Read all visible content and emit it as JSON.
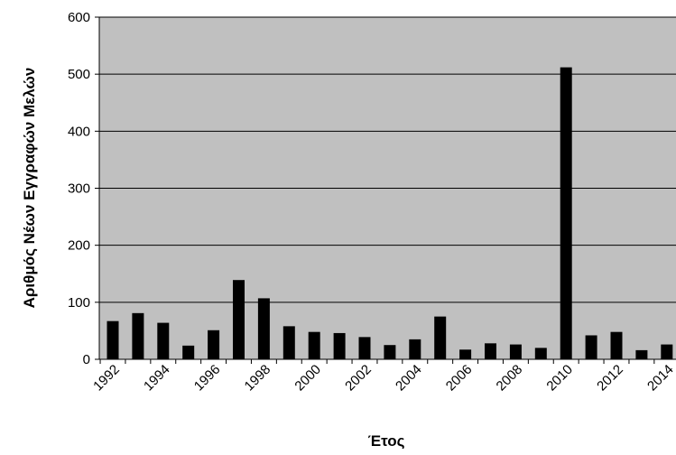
{
  "chart_data": {
    "type": "bar",
    "title": "",
    "xlabel": "Έτος",
    "ylabel": "Αριθμός Νέων Εγγραφών Μελών",
    "ylim": [
      0,
      600
    ],
    "yticks": [
      0,
      100,
      200,
      300,
      400,
      500,
      600
    ],
    "grid": true,
    "plot_background": "#c0c0c0",
    "bar_color": "#000000",
    "categories": [
      "1992",
      "1993",
      "1994",
      "1995",
      "1996",
      "1997",
      "1998",
      "1999",
      "2000",
      "2001",
      "2002",
      "2003",
      "2004",
      "2005",
      "2006",
      "2007",
      "2008",
      "2009",
      "2010",
      "2011",
      "2012",
      "2013",
      "2014"
    ],
    "category_labels_shown": [
      "1992",
      "1994",
      "1996",
      "1998",
      "2000",
      "2002",
      "2004",
      "2006",
      "2008",
      "2010",
      "2012",
      "2014"
    ],
    "values": [
      67,
      81,
      64,
      24,
      51,
      139,
      107,
      58,
      48,
      46,
      39,
      25,
      35,
      75,
      17,
      28,
      26,
      20,
      512,
      42,
      48,
      16,
      26
    ]
  }
}
